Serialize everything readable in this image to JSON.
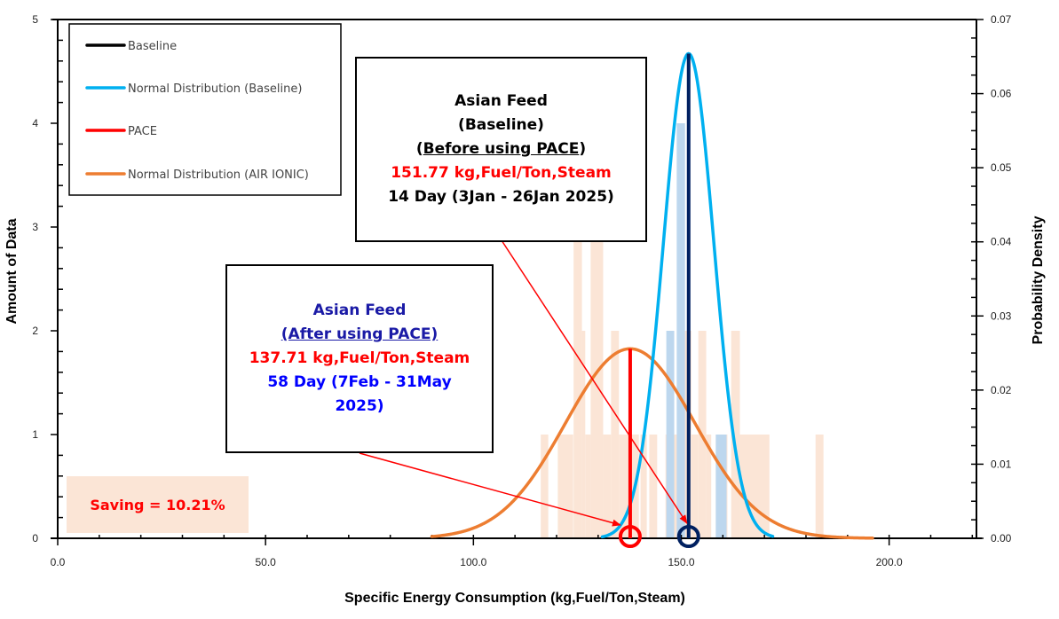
{
  "chart_data": {
    "type": "bar+line",
    "title": "",
    "xlabel": "Specific Energy Consumption  (kg,Fuel/Ton,Steam)",
    "ylabel": "Amount  of  Data",
    "y2label": "Probability Density",
    "xlim": [
      0,
      221
    ],
    "ylim": [
      0,
      5
    ],
    "y2lim": [
      0,
      0.07
    ],
    "x_ticks": [
      "0.0",
      "50.0",
      "100.0",
      "150.0",
      "200.0"
    ],
    "x_tick_values": [
      0,
      50,
      100,
      150,
      200
    ],
    "y_ticks": [
      "0",
      "1",
      "2",
      "3",
      "4",
      "5"
    ],
    "y2_ticks": [
      "0.00",
      "0.01",
      "0.02",
      "0.03",
      "0.04",
      "0.05",
      "0.06",
      "0.07"
    ],
    "grid": false,
    "legend_position": "top-left",
    "legend": [
      {
        "label": "Baseline",
        "color": "#000000"
      },
      {
        "label": "Normal Distribution (Baseline)",
        "color": "#00b0f0"
      },
      {
        "label": "PACE",
        "color": "#ff0000"
      },
      {
        "label": "Normal Distribution (AIR IONIC)",
        "color": "#ed7d31"
      }
    ],
    "histogram_pace": {
      "color": "#fbe5d6",
      "bins": [
        {
          "x0": 116.2,
          "x1": 118.0,
          "count": 1
        },
        {
          "x0": 120.3,
          "x1": 124.0,
          "count": 1
        },
        {
          "x0": 124.1,
          "x1": 126.1,
          "count": 4
        },
        {
          "x0": 126.1,
          "x1": 126.9,
          "count": 2
        },
        {
          "x0": 126.9,
          "x1": 128.2,
          "count": 1
        },
        {
          "x0": 128.2,
          "x1": 131.2,
          "count": 3
        },
        {
          "x0": 131.2,
          "x1": 133.1,
          "count": 1
        },
        {
          "x0": 133.1,
          "x1": 135.0,
          "count": 2
        },
        {
          "x0": 135.0,
          "x1": 139.8,
          "count": 1
        },
        {
          "x0": 140.2,
          "x1": 141.7,
          "count": 1
        },
        {
          "x0": 142.3,
          "x1": 144.2,
          "count": 1
        },
        {
          "x0": 146.2,
          "x1": 150.0,
          "count": 1
        },
        {
          "x0": 150.0,
          "x1": 152.4,
          "count": 2
        },
        {
          "x0": 152.4,
          "x1": 154.1,
          "count": 1
        },
        {
          "x0": 154.1,
          "x1": 156.0,
          "count": 2
        },
        {
          "x0": 156.0,
          "x1": 157.2,
          "count": 1
        },
        {
          "x0": 158.3,
          "x1": 161.1,
          "count": 1
        },
        {
          "x0": 162.0,
          "x1": 164.1,
          "count": 2
        },
        {
          "x0": 164.1,
          "x1": 171.2,
          "count": 1
        },
        {
          "x0": 182.3,
          "x1": 184.2,
          "count": 1
        }
      ]
    },
    "histogram_baseline": {
      "color": "#bdd7ee",
      "bins": [
        {
          "x0": 146.4,
          "x1": 148.3,
          "count": 2
        },
        {
          "x0": 148.9,
          "x1": 150.9,
          "count": 4
        },
        {
          "x0": 158.3,
          "x1": 160.9,
          "count": 1
        }
      ]
    },
    "normal_baseline": {
      "mean": 151.77,
      "sd": 6.1,
      "x_range": [
        131,
        172
      ],
      "color": "#00b0f0",
      "axis": "y2"
    },
    "normal_pace": {
      "mean": 137.71,
      "sd": 15.6,
      "x_range": [
        90,
        196
      ],
      "color": "#ed7d31",
      "axis": "y2"
    },
    "baseline_line": {
      "x": 151.77,
      "color": "#002060"
    },
    "pace_line": {
      "x": 137.71,
      "color": "#ff0000"
    },
    "markers": [
      {
        "name": "pace-marker",
        "x": 137.71,
        "color": "#ff0000"
      },
      {
        "name": "baseline-marker",
        "x": 151.77,
        "color": "#002060"
      }
    ]
  },
  "annotations": {
    "baseline_box": {
      "line1": "Asian Feed",
      "line2": "(Baseline)",
      "line3_pre": "(",
      "line3_ul": "Before using PACE",
      "line3_post": ")",
      "line4": "151.77 kg,Fuel/Ton,Steam",
      "line5": "14 Day (3Jan - 26Jan 2025)"
    },
    "pace_box": {
      "line1": "Asian Feed",
      "line2": "(After using PACE)",
      "line3": "137.71 kg,Fuel/Ton,Steam",
      "line4": "58 Day (7Feb - 31May",
      "line5": "2025)"
    },
    "saving": "Saving = 10.21%"
  }
}
